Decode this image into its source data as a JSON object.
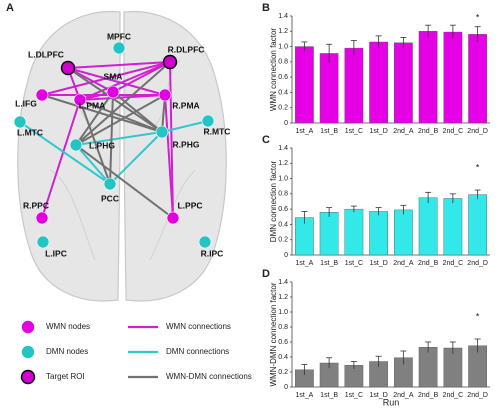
{
  "panel_a": {
    "label": "A",
    "nodes": [
      {
        "label": "MPFC",
        "color": "#22c4c4"
      },
      {
        "label": "L.DLPFC",
        "color": "#d000d0",
        "stroke": "#000000"
      },
      {
        "label": "R.DLPFC",
        "color": "#d000d0",
        "stroke": "#000000"
      },
      {
        "label": "SMA",
        "color": "#e000e0"
      },
      {
        "label": "L.IFG",
        "color": "#e000e0"
      },
      {
        "label": "L.PMA",
        "color": "#e000e0"
      },
      {
        "label": "R.PMA",
        "color": "#e000e0"
      },
      {
        "label": "L.MTC",
        "color": "#22c4c4"
      },
      {
        "label": "R.MTC",
        "color": "#22c4c4"
      },
      {
        "label": "L.PHG",
        "color": "#22c4c4"
      },
      {
        "label": "R.PHG",
        "color": "#22c4c4"
      },
      {
        "label": "PCC",
        "color": "#22c4c4"
      },
      {
        "label": "R.PPC",
        "color": "#e000e0"
      },
      {
        "label": "L.PPC",
        "color": "#e000e0"
      },
      {
        "label": "L.IPC",
        "color": "#22c4c4"
      },
      {
        "label": "R.IPC",
        "color": "#22c4c4"
      }
    ],
    "node_legend": [
      {
        "label": "WMN nodes",
        "color": "#e000e0"
      },
      {
        "label": "DMN nodes",
        "color": "#22c4c4"
      },
      {
        "label": "Target ROI",
        "color": "#d000d0",
        "stroke": "#000000"
      }
    ],
    "edge_legend": [
      {
        "label": "WMN connections",
        "color": "#d020d0"
      },
      {
        "label": "DMN connections",
        "color": "#30c8d0"
      },
      {
        "label": "WMN-DMN connections",
        "color": "#707070"
      }
    ]
  },
  "chart_data": [
    {
      "type": "bar",
      "panel_label": "B",
      "y_label": "WMN connection factor",
      "color": "#e600e6",
      "categories": [
        "1st_A",
        "1st_B",
        "1st_C",
        "1st_D",
        "2nd_A",
        "2nd_B",
        "2nd_C",
        "2nd_D"
      ],
      "values": [
        1.0,
        0.91,
        0.98,
        1.06,
        1.05,
        1.2,
        1.19,
        1.16
      ],
      "errors": [
        0.06,
        0.12,
        0.1,
        0.08,
        0.07,
        0.08,
        0.09,
        0.1
      ],
      "ylim": [
        0,
        1.4
      ],
      "yticks": [
        0,
        0.2,
        0.4,
        0.6,
        0.8,
        {
          "value": 1,
          "label": "1.0"
        },
        1.2,
        1.4
      ],
      "annotations": [
        {
          "category": "2nd_D",
          "text": "*"
        }
      ]
    },
    {
      "type": "bar",
      "panel_label": "C",
      "y_label": "DMN connection factor",
      "color": "#33e8e8",
      "categories": [
        "1st_A",
        "1st_B",
        "1st_C",
        "1st_D",
        "2nd_A",
        "2nd_B",
        "2nd_C",
        "2nd_D"
      ],
      "values": [
        0.49,
        0.56,
        0.6,
        0.57,
        0.59,
        0.75,
        0.74,
        0.79
      ],
      "errors": [
        0.08,
        0.06,
        0.04,
        0.05,
        0.06,
        0.07,
        0.06,
        0.06
      ],
      "ylim": [
        0,
        1.4
      ],
      "yticks": [
        0,
        0.2,
        0.4,
        0.6,
        0.8,
        {
          "value": 1,
          "label": "1.0"
        },
        1.2,
        1.4
      ],
      "annotations": [
        {
          "category": "2nd_D",
          "text": "*"
        }
      ]
    },
    {
      "type": "bar",
      "panel_label": "D",
      "y_label": "WMN-DMN connection factor",
      "x_label": "Run",
      "color": "#808080",
      "categories": [
        "1st_A",
        "1st_B",
        "1st_C",
        "1st_D",
        "2nd_A",
        "2nd_B",
        "2nd_C",
        "2nd_D"
      ],
      "values": [
        0.23,
        0.32,
        0.29,
        0.34,
        0.39,
        0.53,
        0.52,
        0.55
      ],
      "errors": [
        0.07,
        0.07,
        0.05,
        0.07,
        0.09,
        0.07,
        0.08,
        0.09
      ],
      "ylim": [
        0,
        1.4
      ],
      "yticks": [
        0,
        0.2,
        0.4,
        0.6,
        0.8,
        {
          "value": 1,
          "label": "1.0"
        },
        1.2,
        1.4
      ],
      "annotations": [
        {
          "category": "2nd_D",
          "text": "*"
        }
      ]
    }
  ]
}
